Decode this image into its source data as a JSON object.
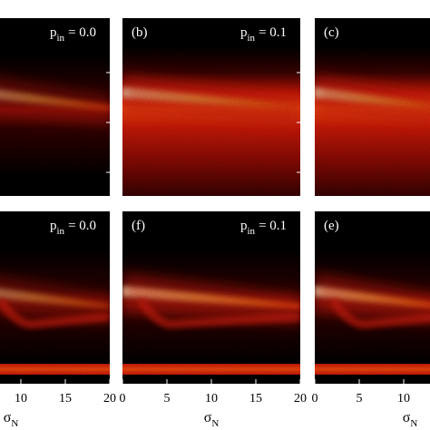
{
  "chart_data": {
    "type": "heatmap",
    "xlabel": "σ",
    "xlabel_subscript": "N",
    "xlim": [
      0,
      20
    ],
    "xticks": [
      "0",
      "5",
      "10",
      "15",
      "20"
    ],
    "colormap": [
      "#000000",
      "#3a0202",
      "#8a0a04",
      "#d41a08",
      "#ff4a0c",
      "#ff9a1a",
      "#ffe860",
      "#ffffd0"
    ],
    "panels": [
      {
        "id": "tl",
        "label": "",
        "p_var": "p",
        "p_sub": "in",
        "p_value": "= 0.0",
        "row": "top"
      },
      {
        "id": "tm",
        "label": "(b)",
        "p_var": "p",
        "p_sub": "in",
        "p_value": "= 0.1",
        "row": "top"
      },
      {
        "id": "tr",
        "label": "(c)",
        "p_var": "",
        "p_sub": "",
        "p_value": "",
        "row": "top"
      },
      {
        "id": "bl",
        "label": "",
        "p_var": "p",
        "p_sub": "in",
        "p_value": "= 0.0",
        "row": "bottom"
      },
      {
        "id": "bm",
        "label": "(f)",
        "p_var": "p",
        "p_sub": "in",
        "p_value": "= 0.1",
        "row": "bottom"
      },
      {
        "id": "br",
        "label": "(e)",
        "p_var": "",
        "p_sub": "",
        "p_value": "",
        "row": "bottom"
      }
    ]
  }
}
